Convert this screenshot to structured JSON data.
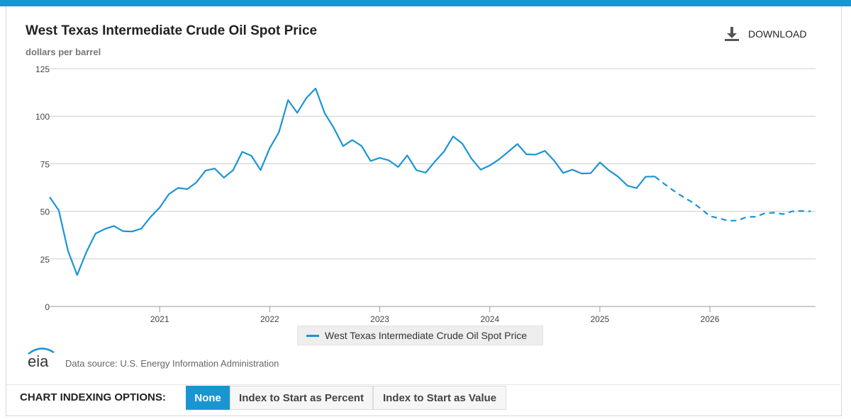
{
  "header": {
    "title": "West Texas Intermediate Crude Oil Spot Price",
    "units": "dollars per barrel",
    "download_label": "DOWNLOAD"
  },
  "footer": {
    "logo_text": "eia",
    "source": "Data source: U.S. Energy Information Administration"
  },
  "indexing": {
    "label": "CHART INDEXING OPTIONS:",
    "options": [
      "None",
      "Index to Start as Percent",
      "Index to Start as Value"
    ],
    "selected": "None"
  },
  "colors": {
    "accent": "#1a95d4",
    "grid": "#cccccc"
  },
  "chart_data": {
    "type": "line",
    "title": "West Texas Intermediate Crude Oil Spot Price",
    "ylabel": "dollars per barrel",
    "ylim": [
      0,
      125
    ],
    "yticks": [
      0,
      25,
      50,
      75,
      100,
      125
    ],
    "xticks": [
      "2021",
      "2022",
      "2023",
      "2024",
      "2025",
      "2026"
    ],
    "grid": true,
    "legend_position": "bottom-center",
    "series": [
      {
        "name": "West Texas Intermediate Crude Oil Spot Price",
        "style": "solid",
        "points": [
          [
            "2020-01",
            57.5
          ],
          [
            "2020-02",
            50.5
          ],
          [
            "2020-03",
            29.2
          ],
          [
            "2020-04",
            16.5
          ],
          [
            "2020-05",
            28.5
          ],
          [
            "2020-06",
            38.3
          ],
          [
            "2020-07",
            40.7
          ],
          [
            "2020-08",
            42.3
          ],
          [
            "2020-09",
            39.6
          ],
          [
            "2020-10",
            39.4
          ],
          [
            "2020-11",
            40.9
          ],
          [
            "2020-12",
            47.0
          ],
          [
            "2021-01",
            52.0
          ],
          [
            "2021-02",
            59.0
          ],
          [
            "2021-03",
            62.3
          ],
          [
            "2021-04",
            61.7
          ],
          [
            "2021-05",
            65.2
          ],
          [
            "2021-06",
            71.4
          ],
          [
            "2021-07",
            72.5
          ],
          [
            "2021-08",
            67.7
          ],
          [
            "2021-09",
            71.6
          ],
          [
            "2021-10",
            81.3
          ],
          [
            "2021-11",
            79.2
          ],
          [
            "2021-12",
            71.7
          ],
          [
            "2022-01",
            83.2
          ],
          [
            "2022-02",
            91.6
          ],
          [
            "2022-03",
            108.5
          ],
          [
            "2022-04",
            101.8
          ],
          [
            "2022-05",
            109.6
          ],
          [
            "2022-06",
            114.6
          ],
          [
            "2022-07",
            101.6
          ],
          [
            "2022-08",
            93.7
          ],
          [
            "2022-09",
            84.3
          ],
          [
            "2022-10",
            87.5
          ],
          [
            "2022-11",
            84.4
          ],
          [
            "2022-12",
            76.5
          ],
          [
            "2023-01",
            78.1
          ],
          [
            "2023-02",
            76.8
          ],
          [
            "2023-03",
            73.3
          ],
          [
            "2023-04",
            79.4
          ],
          [
            "2023-05",
            71.6
          ],
          [
            "2023-06",
            70.3
          ],
          [
            "2023-07",
            76.1
          ],
          [
            "2023-08",
            81.4
          ],
          [
            "2023-09",
            89.4
          ],
          [
            "2023-10",
            85.6
          ],
          [
            "2023-11",
            77.7
          ],
          [
            "2023-12",
            71.9
          ],
          [
            "2024-01",
            74.1
          ],
          [
            "2024-02",
            77.3
          ],
          [
            "2024-03",
            81.3
          ],
          [
            "2024-04",
            85.4
          ],
          [
            "2024-05",
            80.0
          ],
          [
            "2024-06",
            79.8
          ],
          [
            "2024-07",
            81.8
          ],
          [
            "2024-08",
            76.7
          ],
          [
            "2024-09",
            70.2
          ],
          [
            "2024-10",
            71.9
          ],
          [
            "2024-11",
            69.9
          ],
          [
            "2024-12",
            70.0
          ],
          [
            "2025-01",
            75.7
          ],
          [
            "2025-02",
            71.5
          ],
          [
            "2025-03",
            68.2
          ],
          [
            "2025-04",
            63.5
          ],
          [
            "2025-05",
            62.2
          ],
          [
            "2025-06",
            68.2
          ],
          [
            "2025-07",
            68.3
          ]
        ]
      },
      {
        "name": "West Texas Intermediate Crude Oil Spot Price",
        "style": "dashed",
        "points": [
          [
            "2025-07",
            68.3
          ],
          [
            "2025-08",
            64.5
          ],
          [
            "2025-09",
            61.0
          ],
          [
            "2025-10",
            57.8
          ],
          [
            "2025-11",
            55.0
          ],
          [
            "2025-12",
            51.5
          ],
          [
            "2026-01",
            47.5
          ],
          [
            "2026-02",
            46.3
          ],
          [
            "2026-03",
            45.0
          ],
          [
            "2026-04",
            45.2
          ],
          [
            "2026-05",
            47.0
          ],
          [
            "2026-06",
            47.2
          ],
          [
            "2026-07",
            49.0
          ],
          [
            "2026-08",
            49.3
          ],
          [
            "2026-09",
            48.5
          ],
          [
            "2026-10",
            50.0
          ],
          [
            "2026-11",
            50.2
          ],
          [
            "2026-12",
            50.0
          ]
        ]
      }
    ]
  }
}
